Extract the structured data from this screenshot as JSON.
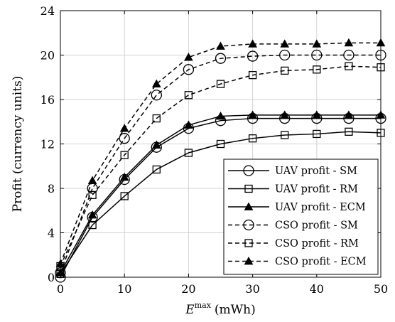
{
  "chart_data": {
    "type": "line",
    "xlabel_main": "E",
    "xlabel_sup": "max",
    "xlabel_unit": "(mWh)",
    "ylabel": "Profit (currency units)",
    "xlim": [
      0,
      50
    ],
    "ylim": [
      0,
      24
    ],
    "xticks": [
      0,
      10,
      20,
      30,
      40,
      50
    ],
    "yticks": [
      0,
      4,
      8,
      12,
      16,
      20,
      24
    ],
    "grid": true,
    "legend_position": "bottom-right",
    "x": [
      0,
      5,
      10,
      15,
      20,
      25,
      30,
      35,
      40,
      45,
      50
    ],
    "series": [
      {
        "name": "UAV profit - SM",
        "marker": "circle",
        "line": "solid",
        "values": [
          0.0,
          5.4,
          8.8,
          11.7,
          13.4,
          14.1,
          14.3,
          14.3,
          14.3,
          14.3,
          14.3
        ]
      },
      {
        "name": "UAV profit - RM",
        "marker": "square",
        "line": "solid",
        "values": [
          0.3,
          4.7,
          7.3,
          9.7,
          11.2,
          12.0,
          12.5,
          12.8,
          12.9,
          13.1,
          13.0
        ]
      },
      {
        "name": "UAV profit - ECM",
        "marker": "triangle",
        "line": "solid",
        "values": [
          0.4,
          5.6,
          9.0,
          11.9,
          13.7,
          14.5,
          14.6,
          14.6,
          14.6,
          14.6,
          14.6
        ]
      },
      {
        "name": "CSO profit - SM",
        "marker": "circle",
        "line": "dashed",
        "values": [
          0.4,
          8.0,
          12.5,
          16.4,
          18.7,
          19.7,
          19.9,
          20.0,
          20.0,
          20.0,
          20.0
        ]
      },
      {
        "name": "CSO profit - RM",
        "marker": "square",
        "line": "dashed",
        "values": [
          1.0,
          7.4,
          11.0,
          14.3,
          16.4,
          17.4,
          18.2,
          18.6,
          18.7,
          19.0,
          18.9
        ]
      },
      {
        "name": "CSO profit - ECM",
        "marker": "triangle",
        "line": "dashed",
        "values": [
          1.2,
          8.7,
          13.4,
          17.4,
          19.8,
          20.8,
          21.0,
          21.0,
          21.0,
          21.1,
          21.1
        ]
      }
    ]
  }
}
